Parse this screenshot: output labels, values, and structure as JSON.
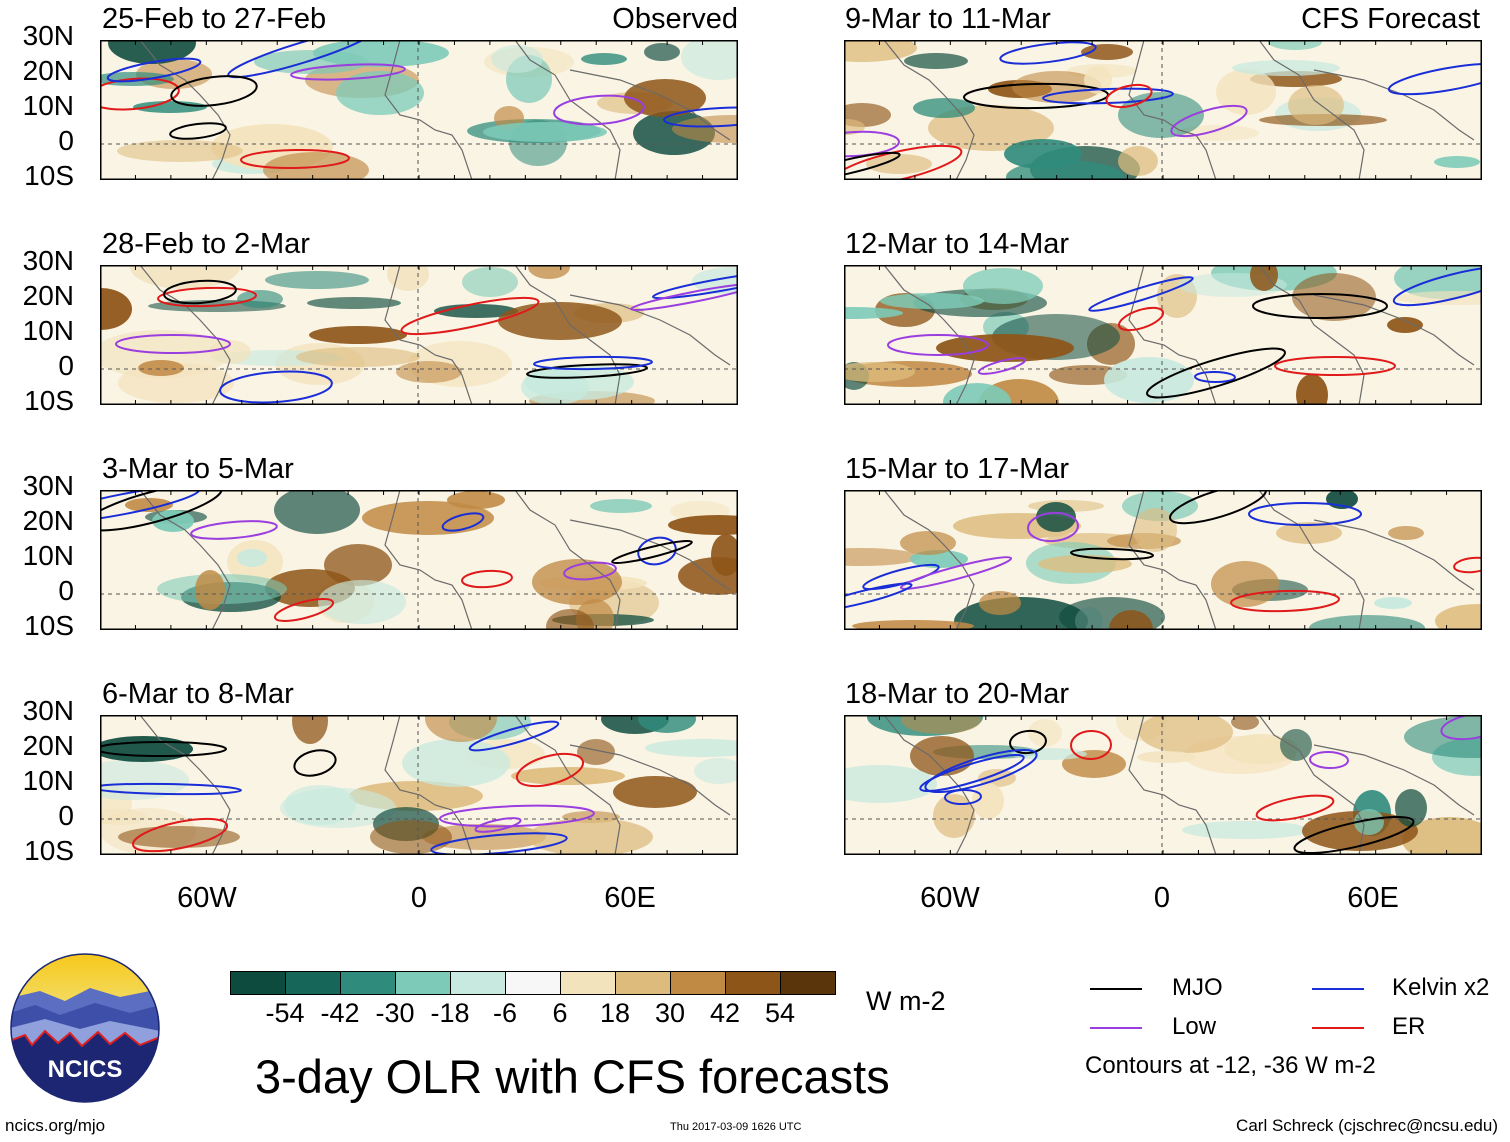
{
  "panels": [
    {
      "title": "25-Feb to 27-Feb",
      "label": "Observed"
    },
    {
      "title": "9-Mar to 11-Mar",
      "label": "CFS Forecast"
    },
    {
      "title": "28-Feb to 2-Mar",
      "label": ""
    },
    {
      "title": "12-Mar to 14-Mar",
      "label": ""
    },
    {
      "title": "3-Mar to 5-Mar",
      "label": ""
    },
    {
      "title": "15-Mar to 17-Mar",
      "label": ""
    },
    {
      "title": "6-Mar to 8-Mar",
      "label": ""
    },
    {
      "title": "18-Mar to 20-Mar",
      "label": ""
    }
  ],
  "lat_labels": [
    "30N",
    "20N",
    "10N",
    "0",
    "10S"
  ],
  "lon_labels": [
    "60W",
    "0",
    "60E"
  ],
  "colorbar": {
    "colors": [
      "#0d4b3e",
      "#17665a",
      "#2f8c7c",
      "#7dcab8",
      "#c7e9df",
      "#f7f7f7",
      "#f3e3bd",
      "#ddbb7d",
      "#c08a45",
      "#8e5518",
      "#5a350c"
    ],
    "ticks": [
      "-54",
      "-42",
      "-30",
      "-18",
      "-6",
      "6",
      "18",
      "30",
      "42",
      "54"
    ],
    "units": "W m-2"
  },
  "legend": {
    "items": [
      {
        "name": "MJO",
        "color": "#000000"
      },
      {
        "name": "Kelvin x2",
        "color": "#1a2ed8"
      },
      {
        "name": "Low",
        "color": "#9b3ee0"
      },
      {
        "name": "ER",
        "color": "#e01a1a"
      }
    ],
    "note": "Contours at -12, -36 W m-2"
  },
  "logo": {
    "text": "NCICS"
  },
  "title": "3-day OLR with CFS forecasts",
  "footer": {
    "left": "ncics.org/mjo",
    "center": "Thu 2017-03-09 1626 UTC",
    "right": "Carl Schreck (cjschrec@ncsu.edu)"
  }
}
